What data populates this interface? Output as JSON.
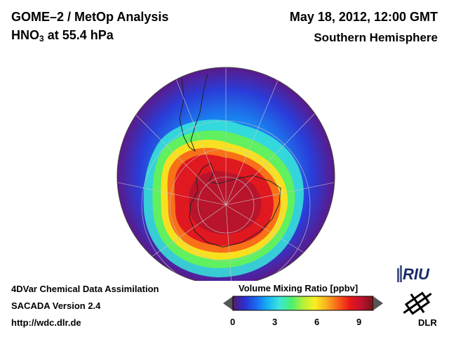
{
  "header": {
    "title_line1": "GOME–2 / MetOp Analysis",
    "species": "HNO",
    "species_sub": "3",
    "level": "at 55.4 hPa",
    "datetime": "May 18, 2012, 12:00 GMT",
    "region": "Southern Hemisphere"
  },
  "footer": {
    "line1": "4DVar Chemical Data Assimilation",
    "line2": "SACADA Version 2.4",
    "line3": "http://wdc.dlr.de"
  },
  "colorbar": {
    "title": "Volume Mixing Ratio [ppbv]",
    "ticks": [
      "0",
      "3",
      "6",
      "9"
    ],
    "min": 0,
    "max": 10,
    "colors": [
      "#5a1a6e",
      "#2a30d0",
      "#1a6af0",
      "#18b4f4",
      "#3ee6d8",
      "#4af070",
      "#b4f03a",
      "#f8f020",
      "#f8b020",
      "#f86018",
      "#e81818",
      "#c01030",
      "#701818"
    ]
  },
  "logos": {
    "riu": "RIU",
    "dlr": "DLR"
  },
  "map": {
    "projection": "orthographic",
    "hemisphere": "south",
    "field": "HNO3",
    "vortex_peak_ppbv": 9.5
  }
}
